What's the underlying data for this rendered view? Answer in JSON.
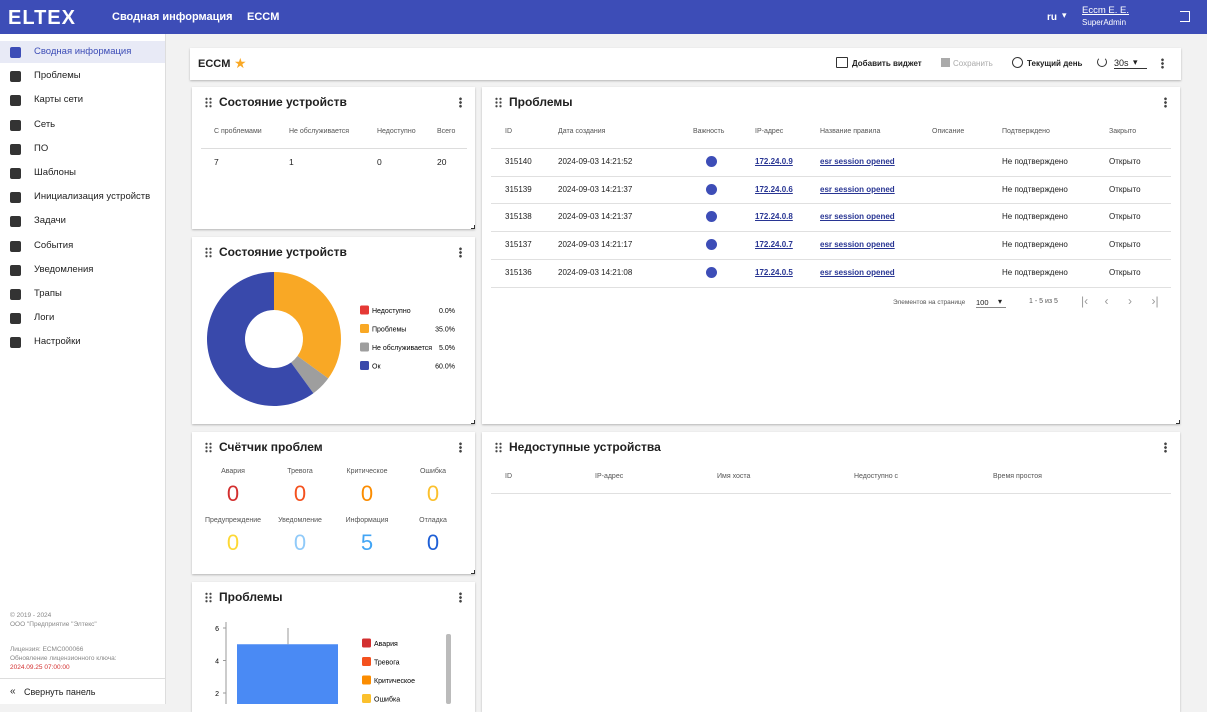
{
  "header": {
    "logo": "ELTEX",
    "breadcrumb": [
      "Сводная информация",
      "ECCM"
    ],
    "language": "ru",
    "user": "Eccm E. E.",
    "role": "SuperAdmin"
  },
  "sidebar": {
    "menu": [
      "Сводная информация",
      "Проблемы",
      "Карты сети",
      "Сеть",
      "ПО",
      "Шаблоны",
      "Инициализация устройств",
      "Задачи",
      "События",
      "Уведомления",
      "Трапы",
      "Логи",
      "Настройки"
    ],
    "copyright": "© 2019 - 2024",
    "company": "ООО \"Предприятие \"Элтекс\"",
    "license": "Лицензия: ECMC000066",
    "license_update": "Обновление лицензионного ключа:",
    "license_date": "2024.09.25 07:00:00",
    "collapse": "Свернуть панель"
  },
  "toolbar": {
    "title": "ECCM",
    "add_widget": "Добавить виджет",
    "save": "Сохранить",
    "period": "Текущий день",
    "refresh": "30s"
  },
  "device_status_table": {
    "title": "Состояние устройств",
    "columns": [
      "С проблемами",
      "Не обслуживается",
      "Недоступно",
      "Всего"
    ],
    "rows": [
      [
        7,
        1,
        0,
        20
      ]
    ]
  },
  "device_status_chart": {
    "type": "pie",
    "title": "Состояние устройств",
    "categories": [
      "Недоступно",
      "Проблемы",
      "Не обслуживается",
      "Ок"
    ],
    "values": [
      0,
      35,
      5,
      60
    ],
    "value_labels": [
      "0.0%",
      "35.0%",
      "5.0%",
      "60.0%"
    ],
    "colors": [
      "#e53935",
      "#f9a825",
      "#9e9e9e",
      "#3949ab"
    ]
  },
  "problems_table": {
    "title": "Проблемы",
    "columns": [
      "ID",
      "Дата создания",
      "Важность",
      "IP-адрес",
      "Название правила",
      "Описание",
      "Подтверждено",
      "Закрыто"
    ],
    "rows": [
      {
        "id": "315140",
        "created": "2024-09-03 14:21:52",
        "ip": "172.24.0.9",
        "rule": "esr session opened",
        "confirmed": "Не подтверждено",
        "closed": "Открыто"
      },
      {
        "id": "315139",
        "created": "2024-09-03 14:21:37",
        "ip": "172.24.0.6",
        "rule": "esr session opened",
        "confirmed": "Не подтверждено",
        "closed": "Открыто"
      },
      {
        "id": "315138",
        "created": "2024-09-03 14:21:37",
        "ip": "172.24.0.8",
        "rule": "esr session opened",
        "confirmed": "Не подтверждено",
        "closed": "Открыто"
      },
      {
        "id": "315137",
        "created": "2024-09-03 14:21:17",
        "ip": "172.24.0.7",
        "rule": "esr session opened",
        "confirmed": "Не подтверждено",
        "closed": "Открыто"
      },
      {
        "id": "315136",
        "created": "2024-09-03 14:21:08",
        "ip": "172.24.0.5",
        "rule": "esr session opened",
        "confirmed": "Не подтверждено",
        "closed": "Открыто"
      }
    ],
    "pagination": {
      "per_page_label": "Элементов на странице",
      "per_page": "100",
      "range": "1 - 5 из 5"
    }
  },
  "problem_counter": {
    "title": "Счётчик проблем",
    "items": [
      {
        "label": "Авария",
        "value": 0,
        "color": "#d32f2f"
      },
      {
        "label": "Тревога",
        "value": 0,
        "color": "#f4511e"
      },
      {
        "label": "Критическое",
        "value": 0,
        "color": "#fb8c00"
      },
      {
        "label": "Ошибка",
        "value": 0,
        "color": "#fbc02d"
      },
      {
        "label": "Предупреждение",
        "value": 0,
        "color": "#fdd835"
      },
      {
        "label": "Уведомление",
        "value": 0,
        "color": "#90caf9"
      },
      {
        "label": "Информация",
        "value": 5,
        "color": "#42a5f5"
      },
      {
        "label": "Отладка",
        "value": 0,
        "color": "#1e5fd6"
      }
    ]
  },
  "unavailable_devices": {
    "title": "Недоступные устройства",
    "columns": [
      "ID",
      "IP-адрес",
      "Имя хоста",
      "Недоступно с",
      "Время простоя"
    ]
  },
  "problems_chart": {
    "type": "bar",
    "title": "Проблемы",
    "values": [
      5
    ],
    "color": "#4a8af4",
    "ylim": [
      0,
      6
    ],
    "yticks": [
      2,
      4,
      6
    ],
    "legend": [
      "Авария",
      "Тревога",
      "Критическое",
      "Ошибка"
    ],
    "legend_colors": [
      "#d32f2f",
      "#f4511e",
      "#fb8c00",
      "#fbc02d"
    ]
  }
}
